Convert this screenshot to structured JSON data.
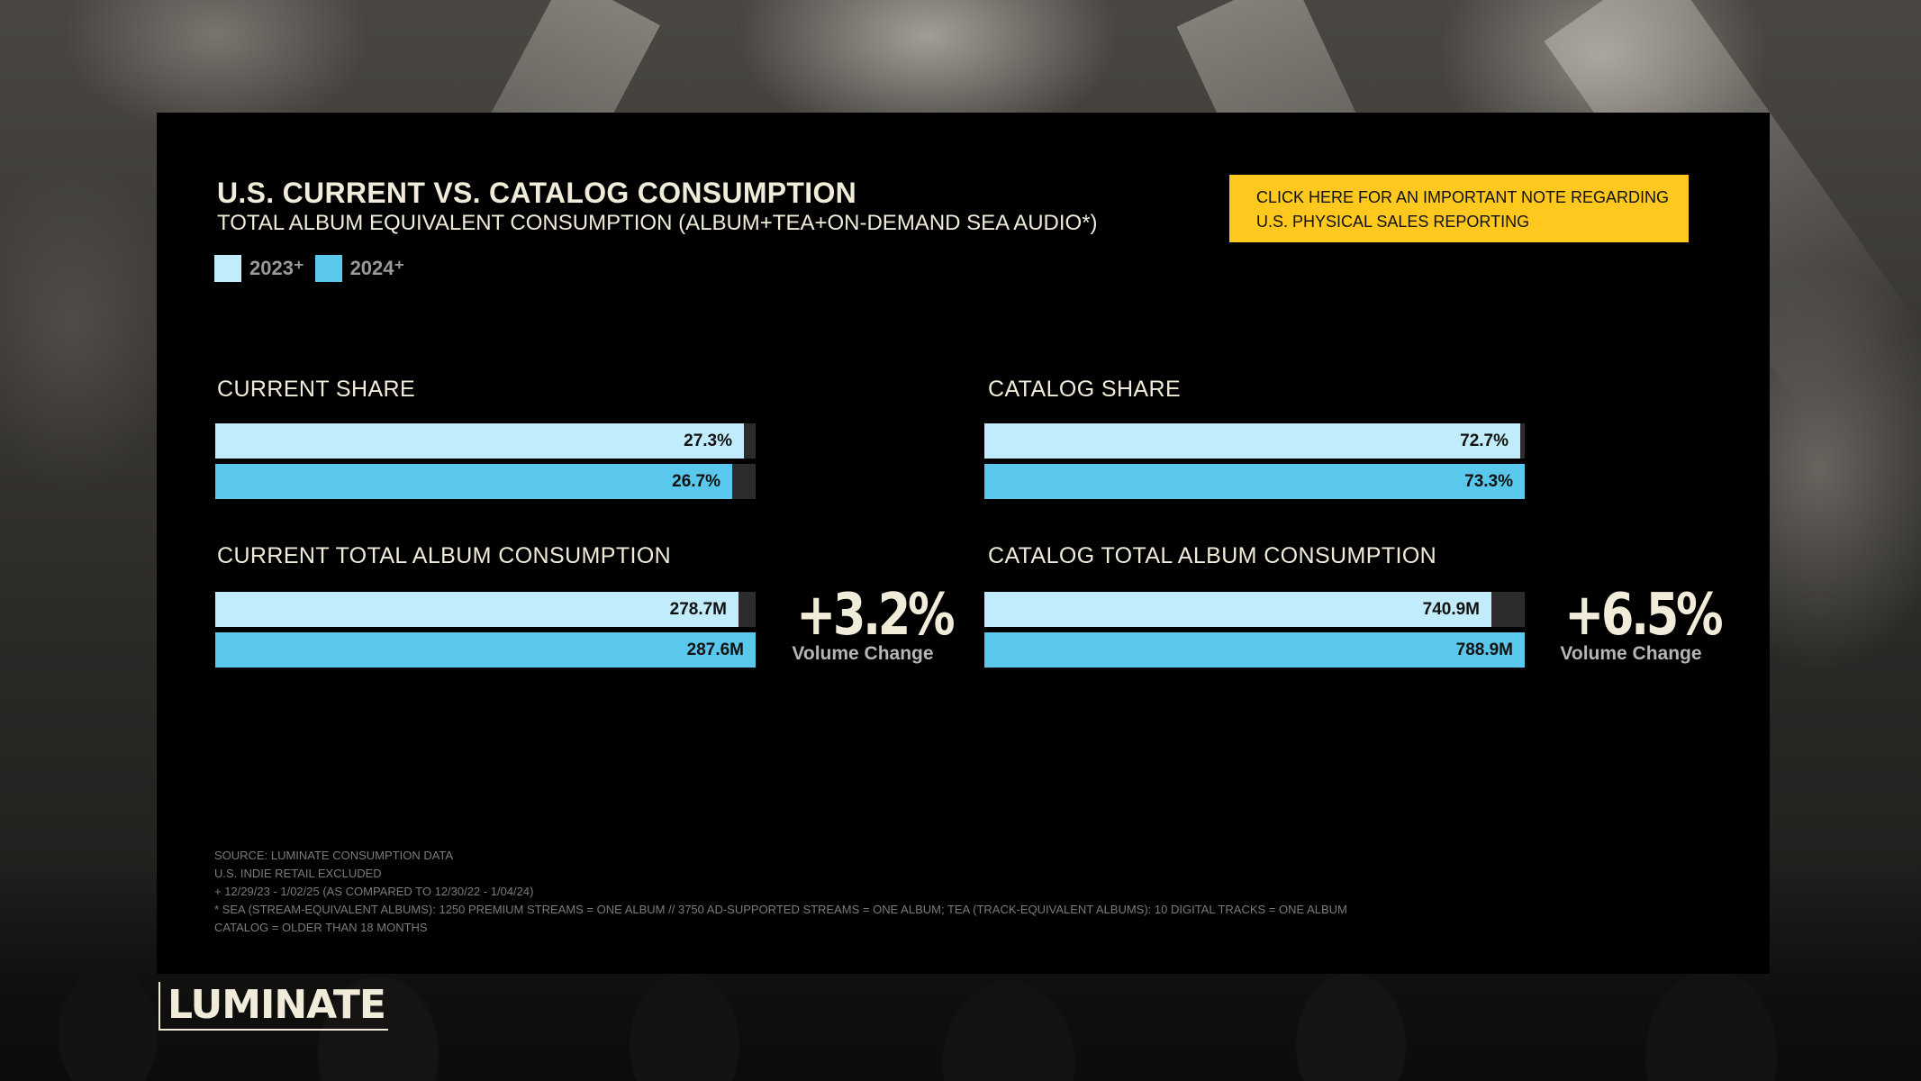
{
  "header": {
    "title": "U.S. CURRENT VS. CATALOG CONSUMPTION",
    "subtitle": "TOTAL ALBUM EQUIVALENT CONSUMPTION (ALBUM+TEA+ON-DEMAND SEA AUDIO*)"
  },
  "note_button": {
    "line1": "CLICK HERE FOR AN IMPORTANT NOTE REGARDING",
    "line2": "U.S. PHYSICAL SALES REPORTING"
  },
  "legend": [
    {
      "label": "2023⁺",
      "color": "#c1ecfb"
    },
    {
      "label": "2024⁺",
      "color": "#5ac8ec"
    }
  ],
  "volume_changes": {
    "current": {
      "value": "+3.2%",
      "label": "Volume Change"
    },
    "catalog": {
      "value": "+6.5%",
      "label": "Volume Change"
    }
  },
  "chart_data": [
    {
      "type": "bar",
      "title": "CURRENT SHARE",
      "categories": [
        "2023⁺",
        "2024⁺"
      ],
      "values": [
        27.3,
        26.7
      ],
      "value_labels": [
        "27.3%",
        "26.7%"
      ],
      "unit": "%",
      "max": 27.9
    },
    {
      "type": "bar",
      "title": "CATALOG SHARE",
      "categories": [
        "2023⁺",
        "2024⁺"
      ],
      "values": [
        72.7,
        73.3
      ],
      "value_labels": [
        "72.7%",
        "73.3%"
      ],
      "unit": "%",
      "max": 73.3
    },
    {
      "type": "bar",
      "title": "CURRENT TOTAL ALBUM CONSUMPTION",
      "categories": [
        "2023⁺",
        "2024⁺"
      ],
      "values": [
        278.7,
        287.6
      ],
      "value_labels": [
        "278.7M",
        "287.6M"
      ],
      "unit": "M",
      "max": 287.6
    },
    {
      "type": "bar",
      "title": "CATALOG TOTAL ALBUM CONSUMPTION",
      "categories": [
        "2023⁺",
        "2024⁺"
      ],
      "values": [
        740.9,
        788.9
      ],
      "value_labels": [
        "740.9M",
        "788.9M"
      ],
      "unit": "M",
      "max": 788.9
    }
  ],
  "footnotes": [
    "SOURCE: LUMINATE CONSUMPTION DATA",
    "U.S. INDIE RETAIL EXCLUDED",
    "+ 12/29/23 - 1/02/25 (AS COMPARED TO 12/30/22 - 1/04/24)",
    "* SEA (STREAM-EQUIVALENT ALBUMS): 1250 PREMIUM STREAMS = ONE ALBUM // 3750 AD-SUPPORTED STREAMS = ONE ALBUM; TEA (TRACK-EQUIVALENT ALBUMS): 10 DIGITAL TRACKS = ONE ALBUM",
    "CATALOG = OLDER THAN 18 MONTHS"
  ],
  "brand": {
    "logo_text": "LUMINATE"
  }
}
